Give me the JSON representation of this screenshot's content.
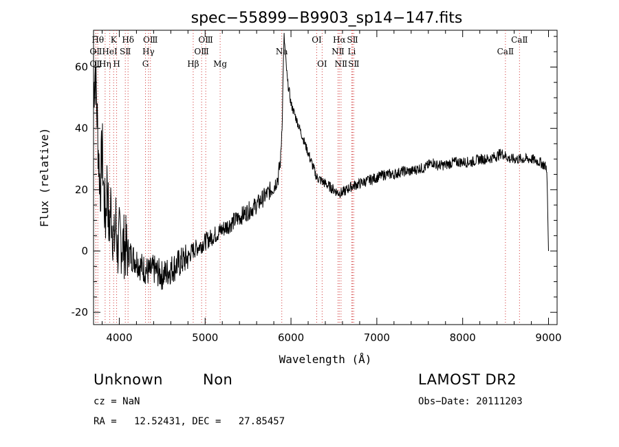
{
  "chart_data": {
    "type": "line",
    "title": "spec−55899−B9903_sp14−147.fits",
    "xlabel": "Wavelength (Å)",
    "ylabel": "Flux (relative)",
    "xlim": [
      3700,
      9100
    ],
    "ylim": [
      -24,
      72
    ],
    "xticks": [
      4000,
      5000,
      6000,
      7000,
      8000,
      9000
    ],
    "yticks": [
      -20,
      0,
      20,
      40,
      60
    ],
    "grid": false,
    "series": [
      {
        "x": [
          3700,
          3720,
          3740,
          3760,
          3780,
          3800,
          3820,
          3840,
          3860,
          3880,
          3900,
          3920,
          3940,
          3960,
          3980,
          4000,
          4050,
          4100,
          4150,
          4200,
          4250,
          4300,
          4350,
          4400,
          4450,
          4500,
          4550,
          4600,
          4650,
          4700,
          4750,
          4800,
          4850,
          4900,
          4950,
          5000,
          5050,
          5100,
          5150,
          5200,
          5300,
          5400,
          5500,
          5600,
          5700,
          5800,
          5850,
          5880,
          5900,
          5910,
          5920,
          5940,
          5960,
          5980,
          6000,
          6050,
          6100,
          6150,
          6200,
          6250,
          6300,
          6350,
          6400,
          6450,
          6500,
          6550,
          6600,
          6650,
          6700,
          6800,
          6900,
          7000,
          7100,
          7200,
          7300,
          7400,
          7500,
          7550,
          7600,
          7650,
          7700,
          7800,
          7900,
          8000,
          8100,
          8200,
          8300,
          8400,
          8450,
          8500,
          8550,
          8600,
          8700,
          8800,
          8900,
          8950,
          8980,
          9000
        ],
        "y": [
          52,
          60,
          45,
          30,
          20,
          35,
          18,
          10,
          25,
          5,
          15,
          8,
          2,
          10,
          0,
          4,
          2,
          0,
          -2,
          -3,
          -5,
          -6,
          -7,
          -6,
          -7,
          -8,
          -7,
          -6,
          -5,
          -4,
          -3,
          -2,
          0,
          1,
          2,
          3,
          4,
          5,
          6,
          7,
          9,
          11,
          13,
          15,
          18,
          21,
          24,
          30,
          45,
          60,
          70,
          62,
          55,
          52,
          48,
          44,
          40,
          36,
          32,
          28,
          24,
          23,
          22,
          21,
          20,
          19,
          19,
          20,
          21,
          22,
          23,
          24,
          25,
          25,
          26,
          26,
          27,
          27,
          28,
          29,
          28,
          28,
          29,
          29,
          29,
          30,
          30,
          31,
          32,
          31,
          30,
          30,
          30,
          30,
          29,
          28,
          27,
          0
        ]
      }
    ],
    "line_markers": [
      {
        "label": "OⅡ",
        "x": 3727,
        "pos": "top2"
      },
      {
        "label": "Hθ",
        "x": 3750,
        "pos": "top1"
      },
      {
        "label": "OⅡ",
        "x": 3727,
        "pos": "top3"
      },
      {
        "label": "Hη",
        "x": 3835,
        "pos": "top3"
      },
      {
        "label": "K",
        "x": 3934,
        "pos": "top1"
      },
      {
        "label": "H",
        "x": 3969,
        "pos": "top3"
      },
      {
        "label": "HeI",
        "x": 3889,
        "pos": "top2"
      },
      {
        "label": "SⅡ",
        "x": 4070,
        "pos": "top2"
      },
      {
        "label": "Hδ",
        "x": 4102,
        "pos": "top1"
      },
      {
        "label": "OⅢ",
        "x": 4363,
        "pos": "top1"
      },
      {
        "label": "Hγ",
        "x": 4340,
        "pos": "top2"
      },
      {
        "label": "G",
        "x": 4305,
        "pos": "top3"
      },
      {
        "label": "Hβ",
        "x": 4861,
        "pos": "top3"
      },
      {
        "label": "OⅢ",
        "x": 4959,
        "pos": "top2"
      },
      {
        "label": "OⅢ",
        "x": 5007,
        "pos": "top1"
      },
      {
        "label": "Mg",
        "x": 5175,
        "pos": "top3"
      },
      {
        "label": "Na",
        "x": 5893,
        "pos": "top2"
      },
      {
        "label": "OI",
        "x": 6300,
        "pos": "top1"
      },
      {
        "label": "OI",
        "x": 6363,
        "pos": "top3"
      },
      {
        "label": "NⅡ",
        "x": 6548,
        "pos": "top2"
      },
      {
        "label": "Hα",
        "x": 6563,
        "pos": "top1"
      },
      {
        "label": "NⅡ",
        "x": 6583,
        "pos": "top3"
      },
      {
        "label": "Li",
        "x": 6708,
        "pos": "top2"
      },
      {
        "label": "SⅡ",
        "x": 6717,
        "pos": "top1"
      },
      {
        "label": "SⅡ",
        "x": 6731,
        "pos": "top3"
      },
      {
        "label": "CaⅡ",
        "x": 8498,
        "pos": "top2"
      },
      {
        "label": "CaⅡ",
        "x": 8662,
        "pos": "top1"
      }
    ]
  },
  "info": {
    "class_label": "Unknown",
    "subclass_label": "Non",
    "survey": "LAMOST DR2",
    "cz": "cz = NaN",
    "obs_date": "Obs−Date: 20111203",
    "coords": "RA =   12.52431, DEC =   27.85457"
  }
}
